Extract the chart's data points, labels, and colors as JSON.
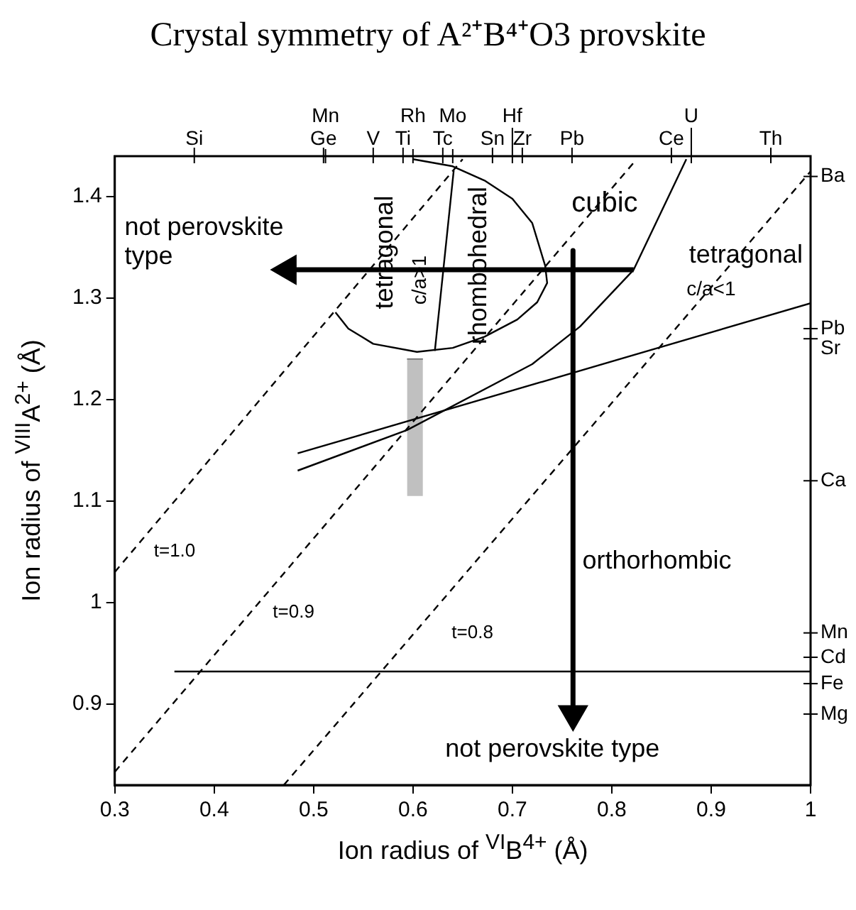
{
  "chart_data": {
    "type": "line",
    "title": "Crystal symmetry of A²⁺B⁴⁺O3 provskite",
    "xlabel": "Ion radius of $^{VI}$B$^{4+}$ (Å)",
    "ylabel": "Ion radius of $^{VIII}$A$^{2+}$ (Å)",
    "xlim": [
      0.3,
      1.0
    ],
    "xticks": [
      0.3,
      0.4,
      0.5,
      0.6,
      0.7,
      0.8,
      0.9,
      1.0
    ],
    "ylim": [
      0.82,
      1.44
    ],
    "yticks": [
      0.9,
      1.0,
      1.1,
      1.2,
      1.3,
      1.4
    ],
    "grid": false,
    "legend": false,
    "ref_lines": [
      {
        "axis": "x",
        "value": 0.38,
        "label": "Si"
      },
      {
        "axis": "x",
        "value": 0.51,
        "label": "Ge"
      },
      {
        "axis": "x",
        "value": 0.512,
        "label": "Mn"
      },
      {
        "axis": "x",
        "value": 0.56,
        "label": "V"
      },
      {
        "axis": "x",
        "value": 0.59,
        "label": "Ti"
      },
      {
        "axis": "x",
        "value": 0.6,
        "label": "Rh"
      },
      {
        "axis": "x",
        "value": 0.63,
        "label": "Tc"
      },
      {
        "axis": "x",
        "value": 0.64,
        "label": "Mo"
      },
      {
        "axis": "x",
        "value": 0.68,
        "label": "Sn"
      },
      {
        "axis": "x",
        "value": 0.7,
        "label": "Hf"
      },
      {
        "axis": "x",
        "value": 0.71,
        "label": "Zr"
      },
      {
        "axis": "x",
        "value": 0.76,
        "label": "Pb"
      },
      {
        "axis": "x",
        "value": 0.86,
        "label": "Ce"
      },
      {
        "axis": "x",
        "value": 0.88,
        "label": "U"
      },
      {
        "axis": "x",
        "value": 0.96,
        "label": "Th"
      },
      {
        "axis": "y",
        "value": 1.42,
        "label": "Ba"
      },
      {
        "axis": "y",
        "value": 1.27,
        "label": "Pb"
      },
      {
        "axis": "y",
        "value": 1.26,
        "label": "Sr"
      },
      {
        "axis": "y",
        "value": 1.12,
        "label": "Ca"
      },
      {
        "axis": "y",
        "value": 0.97,
        "label": "Mn"
      },
      {
        "axis": "y",
        "value": 0.946,
        "label": "Cd"
      },
      {
        "axis": "y",
        "value": 0.92,
        "label": "Fe"
      },
      {
        "axis": "y",
        "value": 0.89,
        "label": "Mg"
      }
    ],
    "series": [
      {
        "color": "#000000",
        "line_style": "dashed",
        "x": [
          0.3,
          0.65
        ],
        "values": [
          1.03,
          1.437
        ]
      },
      {
        "color": "#000000",
        "line_style": "dashed",
        "x": [
          0.3,
          0.825
        ],
        "values": [
          0.833,
          1.437
        ]
      },
      {
        "color": "#000000",
        "line_style": "dashed",
        "x": [
          0.47,
          1.0
        ],
        "values": [
          0.82,
          1.425
        ]
      },
      {
        "color": "#000000",
        "x": [
          0.36,
          1.0
        ],
        "values": [
          0.932,
          0.932
        ]
      },
      {
        "color": "#000000",
        "x": [
          0.484,
          1.0
        ],
        "values": [
          1.147,
          1.295
        ]
      },
      {
        "color": "#000000",
        "x": [
          0.484,
          0.594,
          0.72,
          0.768,
          0.822,
          0.875
        ],
        "values": [
          1.13,
          1.17,
          1.235,
          1.272,
          1.328,
          1.437
        ]
      },
      {
        "color": "#000000",
        "x": [
          0.522,
          0.535,
          0.56,
          0.604,
          0.64,
          0.672,
          0.705,
          0.725,
          0.735,
          0.733,
          0.72,
          0.7,
          0.672,
          0.64,
          0.6
        ],
        "values": [
          1.286,
          1.27,
          1.255,
          1.247,
          1.251,
          1.262,
          1.279,
          1.296,
          1.315,
          1.332,
          1.374,
          1.398,
          1.416,
          1.43,
          1.437
        ]
      },
      {
        "color": "#000000",
        "x": [
          0.641,
          0.622
        ],
        "values": [
          1.426,
          1.248
        ]
      },
      {
        "color": "#000000",
        "marker": "triangle",
        "x": [
          0.822,
          0.474
        ],
        "values": [
          1.328,
          1.328
        ]
      },
      {
        "color": "#000000",
        "marker": "triangle",
        "x": [
          0.761,
          0.761
        ],
        "values": [
          1.347,
          0.89
        ]
      },
      {
        "color": "#777777",
        "x": [
          0.594,
          0.61
        ],
        "values": [
          1.24,
          1.24
        ],
        "lower": [
          1.105,
          1.105
        ],
        "upper": [
          1.24,
          1.24
        ]
      }
    ],
    "annotations": [
      "not perovskite type",
      "cubic",
      "tetragonal",
      "c/a<1",
      "tetragonal",
      "c/a>1",
      "rhombohedral",
      "orthorhombic",
      "not perovskite type",
      "t=1.0",
      "t=0.9",
      "t=0.8"
    ]
  }
}
